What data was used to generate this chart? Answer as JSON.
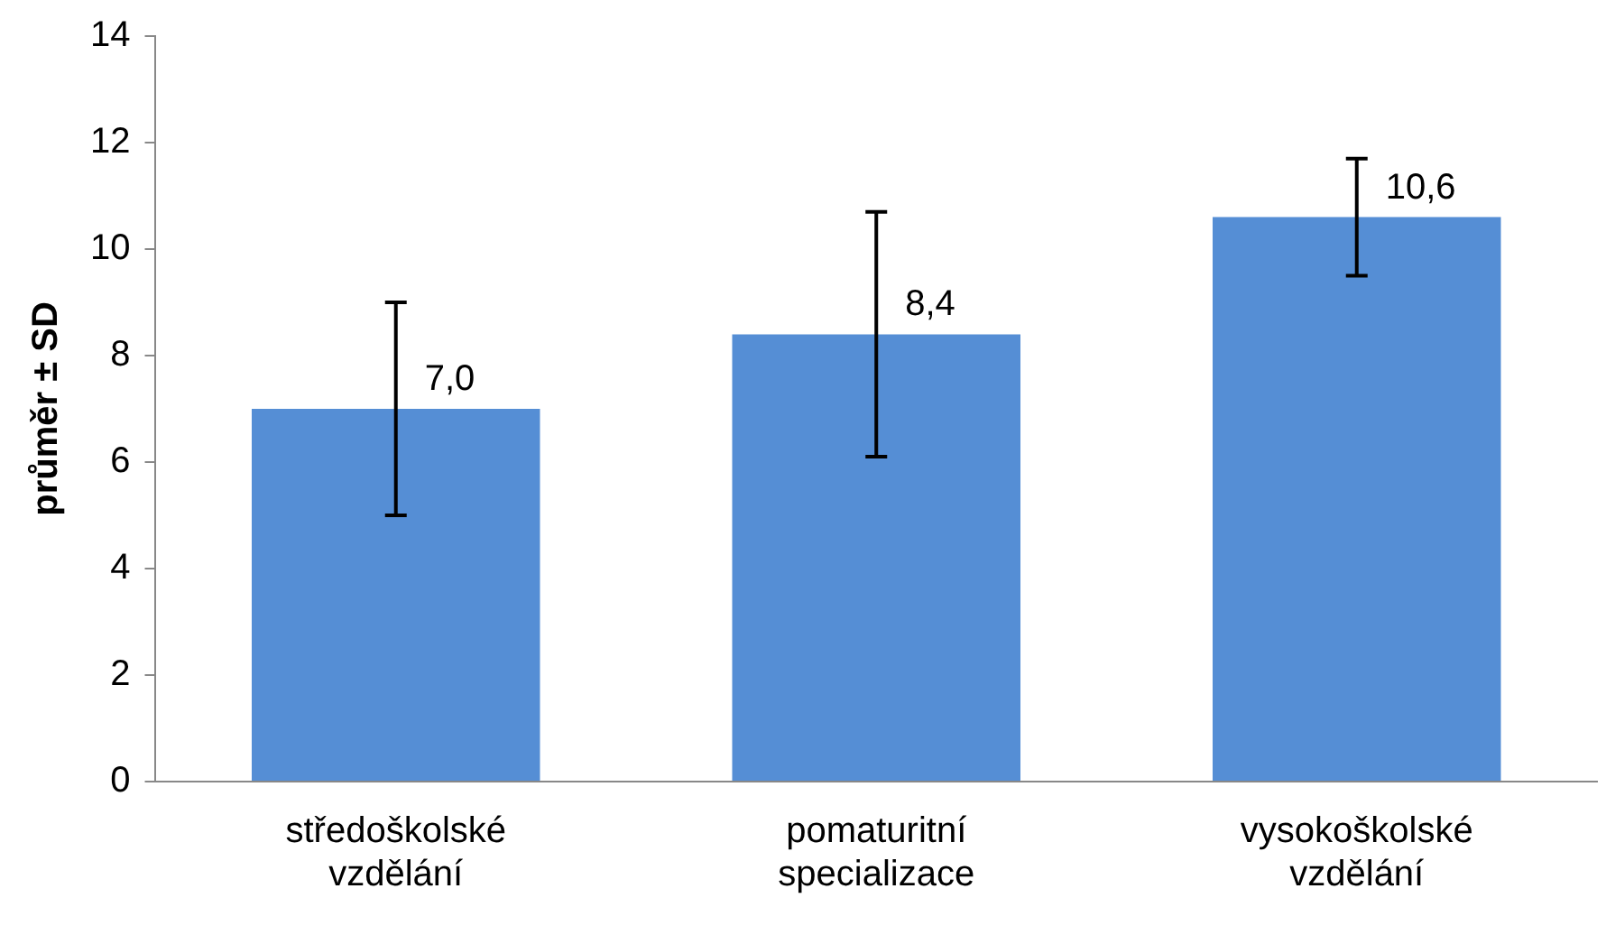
{
  "chart_data": {
    "type": "bar",
    "ylabel": "průměr ± SD",
    "categories": [
      "středoškolské vzdělání",
      "pomaturitní specializace",
      "vysokoškolské vzdělání"
    ],
    "values": [
      7.0,
      8.4,
      10.6
    ],
    "errors": [
      2.0,
      2.3,
      1.1
    ],
    "value_labels": [
      "7,0",
      "8,4",
      "10,6"
    ],
    "color": "#558ed5",
    "ylim": [
      0,
      14
    ],
    "yticks": [
      0,
      2,
      4,
      6,
      8,
      10,
      12,
      14
    ],
    "grid": false,
    "legend": false
  }
}
